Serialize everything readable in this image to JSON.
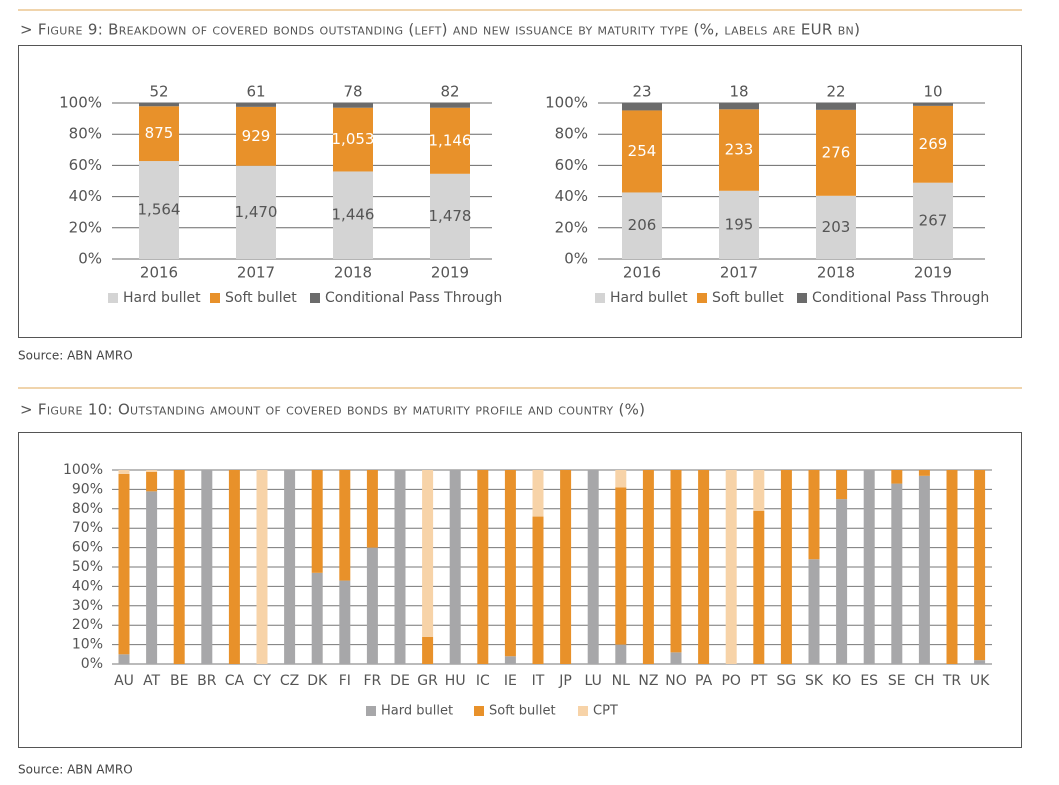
{
  "figure_9": {
    "title": "> Figure 9: Breakdown of covered bonds outstanding (left) and new issuance by maturity type (%, labels are EUR bn)",
    "source": "Source: ABN AMRO"
  },
  "figure_10": {
    "title": "> Figure 10: Outstanding amount of covered bonds by maturity profile and country (%)",
    "source": "Source: ABN AMRO"
  },
  "chart_data": [
    {
      "type": "bar",
      "stack": "percent",
      "categories": [
        "2016",
        "2017",
        "2018",
        "2019"
      ],
      "series": [
        {
          "name": "Hard bullet",
          "color": "#d4d4d4",
          "values": [
            1564,
            1470,
            1446,
            1478
          ],
          "value_labels": [
            "1,564",
            "1,470",
            "1,446",
            "1,478"
          ]
        },
        {
          "name": "Soft bullet",
          "color": "#e8912a",
          "values": [
            875,
            929,
            1053,
            1146
          ],
          "value_labels": [
            "875",
            "929",
            "1,053",
            "1,146"
          ]
        },
        {
          "name": "Conditional Pass Through",
          "color": "#6b6b6b",
          "values": [
            52,
            61,
            78,
            82
          ]
        }
      ],
      "ylim": [
        0,
        100
      ],
      "yticks": [
        {
          "value": 0,
          "label": "0%"
        },
        {
          "value": 20,
          "label": "20%"
        },
        {
          "value": 40,
          "label": "40%"
        },
        {
          "value": 60,
          "label": "60%"
        },
        {
          "value": 80,
          "label": "80%"
        },
        {
          "value": 100,
          "label": "100%"
        }
      ],
      "grid": true,
      "legend": "bottom"
    },
    {
      "type": "bar",
      "stack": "percent",
      "categories": [
        "2016",
        "2017",
        "2018",
        "2019"
      ],
      "series": [
        {
          "name": "Hard bullet",
          "color": "#d4d4d4",
          "values": [
            206,
            195,
            203,
            267
          ]
        },
        {
          "name": "Soft bullet",
          "color": "#e8912a",
          "values": [
            254,
            233,
            276,
            269
          ]
        },
        {
          "name": "Conditional Pass Through",
          "color": "#6b6b6b",
          "values": [
            23,
            18,
            22,
            10
          ]
        }
      ],
      "ylim": [
        0,
        100
      ],
      "yticks": [
        {
          "value": 0,
          "label": "0%"
        },
        {
          "value": 20,
          "label": "20%"
        },
        {
          "value": 40,
          "label": "40%"
        },
        {
          "value": 60,
          "label": "60%"
        },
        {
          "value": 80,
          "label": "80%"
        },
        {
          "value": 100,
          "label": "100%"
        }
      ],
      "grid": true,
      "legend": "bottom"
    },
    {
      "type": "bar",
      "stack": "stacked",
      "categories": [
        "AU",
        "AT",
        "BE",
        "BR",
        "CA",
        "CY",
        "CZ",
        "DK",
        "FI",
        "FR",
        "DE",
        "GR",
        "HU",
        "IC",
        "IE",
        "IT",
        "JP",
        "LU",
        "NL",
        "NZ",
        "NO",
        "PA",
        "PO",
        "PT",
        "SG",
        "SK",
        "KO",
        "ES",
        "SE",
        "CH",
        "TR",
        "UK"
      ],
      "series": [
        {
          "name": "Hard bullet",
          "color": "#a7a7a9",
          "values": [
            5,
            89,
            0,
            100,
            0,
            0,
            100,
            47,
            43,
            60,
            100,
            0,
            100,
            0,
            4,
            0,
            0,
            100,
            10,
            0,
            6,
            0,
            0,
            0,
            0,
            54,
            85,
            100,
            93,
            97,
            0,
            2
          ]
        },
        {
          "name": "Soft bullet",
          "color": "#e8912a",
          "values": [
            93,
            10,
            100,
            0,
            100,
            0,
            0,
            53,
            57,
            40,
            0,
            14,
            0,
            100,
            96,
            76,
            100,
            0,
            81,
            100,
            94,
            100,
            0,
            79,
            100,
            46,
            15,
            0,
            7,
            3,
            100,
            98
          ]
        },
        {
          "name": "CPT",
          "color": "#f7d3a8",
          "values": [
            2,
            1,
            0,
            0,
            0,
            100,
            0,
            0,
            0,
            0,
            0,
            86,
            0,
            0,
            0,
            24,
            0,
            0,
            9,
            0,
            0,
            0,
            100,
            21,
            0,
            0,
            0,
            0,
            0,
            0,
            0,
            0
          ]
        }
      ],
      "ylim": [
        0,
        100
      ],
      "yticks": [
        {
          "value": 0,
          "label": "0%"
        },
        {
          "value": 10,
          "label": "10%"
        },
        {
          "value": 20,
          "label": "20%"
        },
        {
          "value": 30,
          "label": "30%"
        },
        {
          "value": 40,
          "label": "40%"
        },
        {
          "value": 50,
          "label": "50%"
        },
        {
          "value": 60,
          "label": "60%"
        },
        {
          "value": 70,
          "label": "70%"
        },
        {
          "value": 80,
          "label": "80%"
        },
        {
          "value": 90,
          "label": "90%"
        },
        {
          "value": 100,
          "label": "100%"
        }
      ],
      "grid": true,
      "legend": "bottom"
    }
  ]
}
